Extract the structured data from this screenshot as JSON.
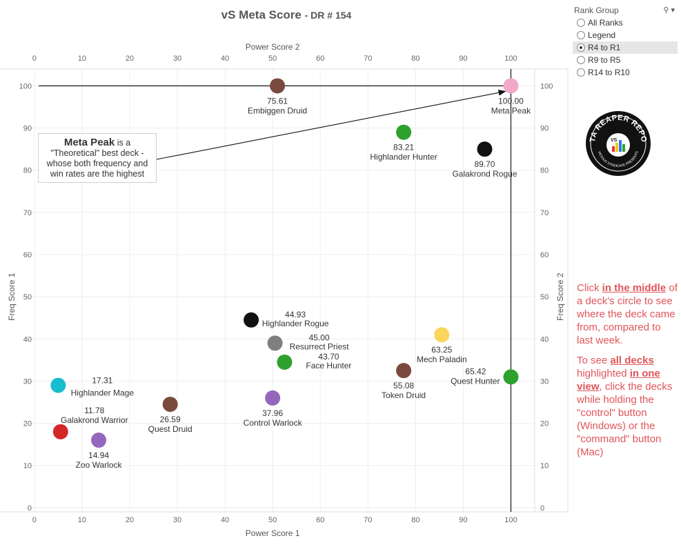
{
  "title": {
    "main": "vS Meta Score",
    "sub": "- DR # 154"
  },
  "rank_group": {
    "label": "Rank Group",
    "options": [
      "All Ranks",
      "Legend",
      "R4 to R1",
      "R9 to R5",
      "R14 to R10"
    ],
    "selected": "R4 to R1"
  },
  "logo": {
    "text_top": "DATA REAPER REPORT",
    "text_bottom": "VICIOUS SYNDICATE PRESENTS",
    "badge": "VS"
  },
  "callout": {
    "bold": "Meta Peak",
    "rest": [
      " is a",
      "\"Theoretical\" best deck -",
      "whose both frequency and",
      "win rates are the highest"
    ]
  },
  "notes": {
    "p1": [
      "Click ",
      "in the middle",
      " of a deck's circle to see where the deck came from, compared to last week."
    ],
    "p2": [
      "To see ",
      "all decks ",
      "highlighted ",
      "in one view",
      ", click the decks while holding the \"control\" button (Windows) or the \"command\" button (Mac)"
    ]
  },
  "colors": {
    "note": "#e0555a",
    "axis": "#e8e8e8",
    "refline": "#222222"
  },
  "chart_data": {
    "type": "scatter",
    "x_axis_bottom": {
      "label": "Power Score 1",
      "range": [
        -2,
        105
      ],
      "ticks": [
        0,
        10,
        20,
        30,
        40,
        50,
        60,
        70,
        80,
        90,
        100
      ]
    },
    "x_axis_top": {
      "label": "Power Score 2",
      "range": [
        -2,
        105
      ],
      "ticks": [
        0,
        10,
        20,
        30,
        40,
        50,
        60,
        70,
        80,
        90,
        100
      ]
    },
    "y_axis_left": {
      "label": "Freq Score 1",
      "range": [
        -1,
        104
      ],
      "ticks": [
        0,
        10,
        20,
        30,
        40,
        50,
        60,
        70,
        80,
        90,
        100
      ]
    },
    "y_axis_right": {
      "label": "Freq Score 2",
      "range": [
        -1,
        104
      ],
      "ticks": [
        0,
        10,
        20,
        30,
        40,
        50,
        60,
        70,
        80,
        90,
        100
      ]
    },
    "grid": true,
    "reference_lines": {
      "x": 100,
      "y": 100
    },
    "points": [
      {
        "name": "Embiggen Druid",
        "value": "75.61",
        "x": 51,
        "y": 100,
        "color": "#7a4a3e",
        "label_pos": "below"
      },
      {
        "name": "Meta Peak",
        "value": "100.00",
        "x": 100,
        "y": 100,
        "color": "#f2a8c8",
        "label_pos": "below"
      },
      {
        "name": "Highlander Hunter",
        "value": "83.21",
        "x": 77.5,
        "y": 89,
        "color": "#2ea12e",
        "label_pos": "below"
      },
      {
        "name": "Galakrond Rogue",
        "value": "89.70",
        "x": 94.5,
        "y": 85,
        "color": "#111111",
        "label_pos": "below"
      },
      {
        "name": "Highlander Rogue",
        "value": "44.93",
        "x": 45.5,
        "y": 44.5,
        "color": "#111111",
        "label_pos": "right"
      },
      {
        "name": "Resurrect Priest",
        "value": "45.00",
        "x": 50.5,
        "y": 39,
        "color": "#7f7f7f",
        "label_pos": "right"
      },
      {
        "name": "Face Hunter",
        "value": "43.70",
        "x": 52.5,
        "y": 34.5,
        "color": "#2ea12e",
        "label_pos": "right"
      },
      {
        "name": "Mech Paladin",
        "value": "63.25",
        "x": 85.5,
        "y": 41,
        "color": "#fad55c",
        "label_pos": "below"
      },
      {
        "name": "Token Druid",
        "value": "55.08",
        "x": 77.5,
        "y": 32.5,
        "color": "#7a4a3e",
        "label_pos": "below"
      },
      {
        "name": "Quest Hunter",
        "value": "65.42",
        "x": 100,
        "y": 31,
        "color": "#2ea12e",
        "label_pos": "left"
      },
      {
        "name": "Highlander Mage",
        "value": "17.31",
        "x": 5,
        "y": 29,
        "color": "#17becf",
        "label_pos": "right-far"
      },
      {
        "name": "Galakrond Warrior",
        "value": "11.78",
        "x": 5.5,
        "y": 18,
        "color": "#d62728",
        "label_pos": "above-right"
      },
      {
        "name": "Zoo Warlock",
        "value": "14.94",
        "x": 13.5,
        "y": 16,
        "color": "#9467bd",
        "label_pos": "below"
      },
      {
        "name": "Quest Druid",
        "value": "26.59",
        "x": 28.5,
        "y": 24.5,
        "color": "#7a4a3e",
        "label_pos": "below"
      },
      {
        "name": "Control Warlock",
        "value": "37.96",
        "x": 50,
        "y": 26,
        "color": "#9467bd",
        "label_pos": "below"
      }
    ]
  }
}
